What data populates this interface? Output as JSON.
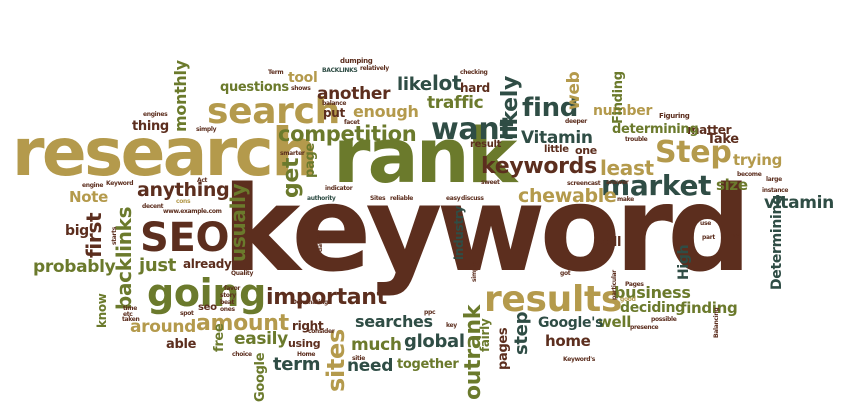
{
  "palette": {
    "brown": "#5c2e1e",
    "olive": "#6b7a2c",
    "gold": "#b49a4c",
    "teal": "#2f4d45",
    "gray": "#8b8373"
  },
  "words": {
    "keyword": "keyword",
    "research": "research",
    "rank": "rank",
    "search": "search",
    "competition": "competition",
    "results": "results",
    "going": "going",
    "market": "market",
    "step": "Step",
    "seo": "SEO",
    "keywords": "keywords",
    "want": "want",
    "find": "find",
    "amount": "amount",
    "important": "important",
    "backlinks": "backlinks",
    "sites": "sites",
    "outrank": "outrank",
    "monthly": "monthly",
    "anything": "anything",
    "chewable": "chewable",
    "vitamin_cap": "Vitamin",
    "vitamin": "vitamin",
    "another": "another",
    "traffic": "traffic",
    "enough": "enough",
    "likely": "likely",
    "lot": "lot",
    "like": "like",
    "web": "web",
    "least": "least",
    "first": "first",
    "usually": "usually",
    "get": "get",
    "page": "page",
    "probably": "probably",
    "just": "just",
    "note": "Note",
    "around": "around",
    "global": "global",
    "much": "much",
    "need": "need",
    "searches": "searches",
    "easily": "easily",
    "term": "term",
    "business": "business",
    "finding": "finding",
    "deciding": "deciding",
    "well": "well",
    "googles": "Google's",
    "home": "home",
    "together": "together",
    "pages": "pages",
    "step_lc": "step",
    "industry": "industry",
    "size": "size",
    "sell": "sell",
    "trying": "trying",
    "matter": "matter",
    "take": "Take",
    "determining": "determining",
    "determining_cap": "Determining",
    "number": "number",
    "finding_cap": "Finding",
    "high": "High",
    "questions": "questions",
    "tool": "tool",
    "thing": "thing",
    "put": "put",
    "hard": "hard",
    "big": "big",
    "already": "already",
    "free": "free",
    "able": "able",
    "know": "know",
    "right": "right",
    "using": "using",
    "google": "Google",
    "fairly": "fairly",
    "little": "little",
    "one": "one",
    "result": "result",
    "seo_lc": "seo",
    "home_sm": "Home",
    "choice": "choice",
    "quality": "Quality",
    "dumping": "dumping",
    "relatively": "relatively",
    "backlinks_cap": "BACKLINKS",
    "checking": "checking",
    "shows": "shows",
    "balance": "balance",
    "facet": "facet",
    "smarter": "smarter",
    "deeper": "deeper",
    "engines": "engines",
    "simply": "simply",
    "trouble": "trouble",
    "indicator": "indicator",
    "authority": "authority",
    "figuring": "Figuring",
    "instance": "instance",
    "large": "large",
    "become": "become",
    "answer": "answer",
    "screencast": "screencast",
    "sweet": "sweet",
    "easy": "easy",
    "discuss": "discuss",
    "sites_sm": "Sites",
    "reliable": "reliable",
    "keyword_sm": "Keyword",
    "engine": "engine",
    "act": "Act",
    "cons": "cons",
    "decent": "decent",
    "example": "www.example.com",
    "make": "make",
    "use": "use",
    "part": "part",
    "may": "may",
    "pages_sm": "Pages",
    "good": "good",
    "particular": "particular",
    "presence": "presence",
    "keywords_sm": "Keyword's",
    "possible": "possible",
    "balancing": "Balancing",
    "got": "got",
    "simple": "simple",
    "ppc": "ppc",
    "consider": "consider",
    "key": "key",
    "sitie": "sitie",
    "term_cap": "Term",
    "dominating": "Dominating",
    "taken": "taken",
    "etc": "etc",
    "time": "time",
    "beat": "beat",
    "ones": "ones",
    "story": "story",
    "favor": "favor",
    "spot": "spot",
    "starts": "starts",
    "go": "go",
    "data": "data"
  }
}
